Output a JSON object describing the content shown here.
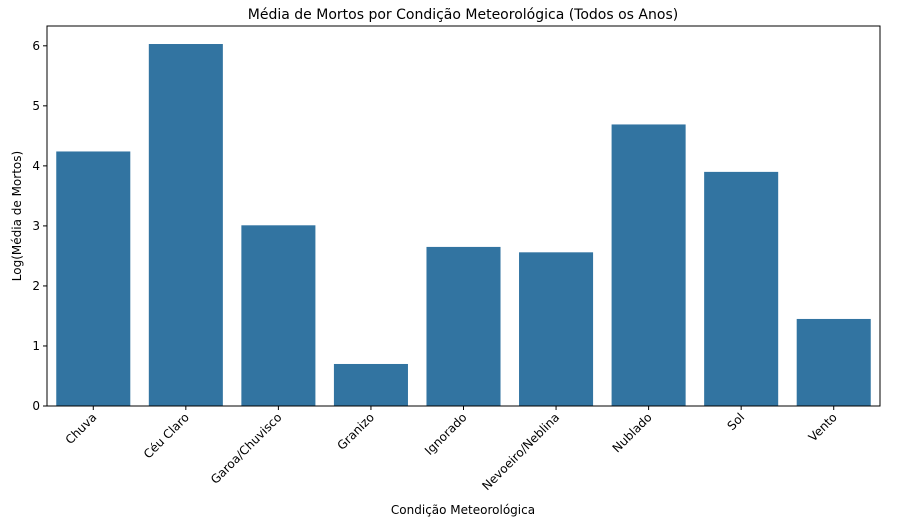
{
  "chart_data": {
    "type": "bar",
    "title": "Média de Mortos por Condição Meteorológica (Todos os Anos)",
    "xlabel": "Condição Meteorológica",
    "ylabel": "Log(Média de Mortos)",
    "categories": [
      "Chuva",
      "Céu Claro",
      "Garoa/Chuvisco",
      "Granizo",
      "Ignorado",
      "Nevoeiro/Neblina",
      "Nublado",
      "Sol",
      "Vento"
    ],
    "values": [
      4.24,
      6.03,
      3.01,
      0.7,
      2.65,
      2.56,
      4.69,
      3.9,
      1.45
    ],
    "ylim": [
      0,
      6.33
    ],
    "yticks": [
      0,
      1,
      2,
      3,
      4,
      5,
      6
    ],
    "grid": false,
    "bar_color": "#3274a1"
  }
}
